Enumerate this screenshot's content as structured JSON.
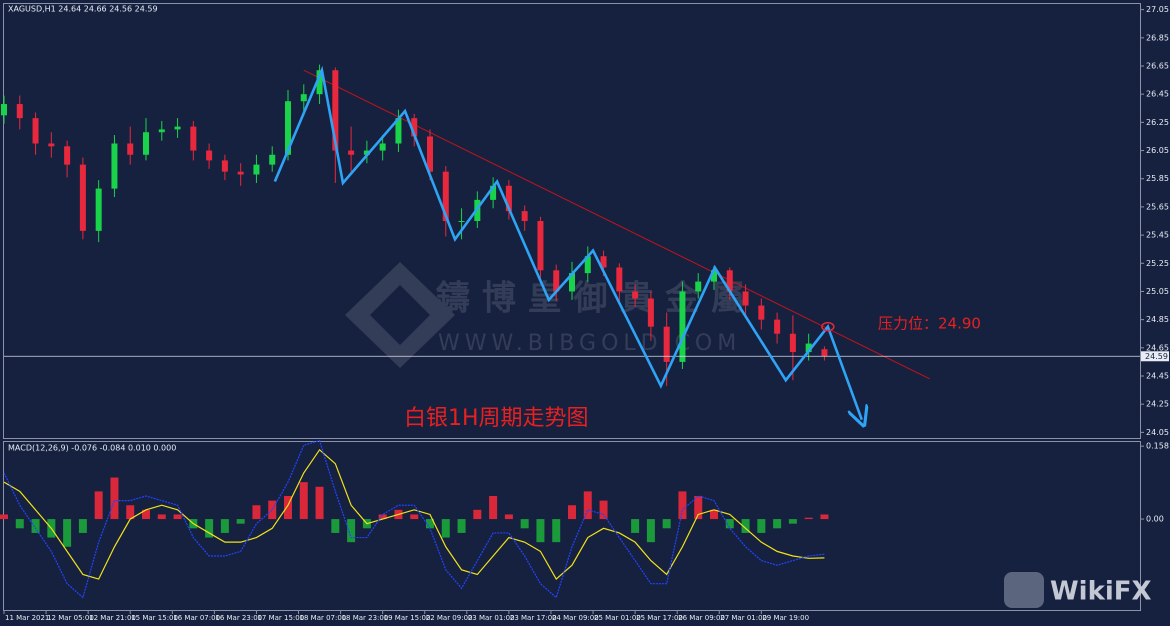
{
  "chart_data": [
    {
      "type": "candlestick",
      "title": "XAGUSD,H1  24.64 24.66 24.56 24.59",
      "x": [
        0,
        6,
        12,
        18,
        24,
        30,
        36,
        42,
        48,
        54,
        60,
        66,
        72,
        78,
        84,
        90,
        96,
        102,
        108,
        114,
        120,
        126,
        132,
        138,
        144,
        150,
        156,
        162,
        168,
        174,
        180,
        186,
        192,
        198,
        204,
        210,
        216,
        222,
        228,
        234,
        240,
        246,
        252,
        258,
        264,
        270,
        276,
        282,
        288,
        294,
        300,
        306,
        312
      ],
      "open": [
        26.3,
        26.38,
        26.28,
        26.1,
        26.08,
        25.95,
        25.48,
        25.78,
        26.1,
        26.02,
        26.18,
        26.2,
        26.22,
        26.05,
        25.98,
        25.9,
        25.88,
        25.95,
        26.02,
        26.4,
        26.45,
        26.62,
        26.05,
        26.02,
        26.05,
        26.1,
        26.28,
        26.15,
        25.9,
        25.55,
        25.55,
        25.7,
        25.8,
        25.62,
        25.55,
        25.2,
        25.05,
        25.18,
        25.3,
        25.22,
        25.05,
        25.0,
        24.8,
        24.55,
        25.05,
        25.12,
        25.2,
        25.05,
        24.95,
        24.85,
        24.75,
        24.62,
        24.64
      ],
      "high": [
        26.44,
        26.44,
        26.32,
        26.18,
        26.12,
        26.0,
        25.84,
        26.16,
        26.22,
        26.28,
        26.26,
        26.28,
        26.26,
        26.1,
        26.02,
        25.96,
        26.02,
        26.08,
        26.48,
        26.52,
        26.66,
        26.64,
        26.22,
        26.12,
        26.16,
        26.34,
        26.31,
        26.2,
        25.94,
        25.64,
        25.76,
        25.86,
        25.84,
        25.66,
        25.58,
        25.24,
        25.26,
        25.37,
        25.34,
        25.25,
        25.1,
        25.05,
        24.9,
        25.12,
        25.18,
        25.23,
        25.22,
        25.1,
        25.0,
        24.9,
        24.88,
        24.75,
        24.66
      ],
      "low": [
        26.24,
        26.2,
        26.02,
        26.0,
        25.86,
        25.42,
        25.4,
        25.72,
        25.95,
        25.98,
        26.12,
        26.14,
        25.98,
        25.92,
        25.84,
        25.8,
        25.82,
        25.9,
        25.98,
        26.3,
        26.38,
        25.82,
        25.9,
        25.96,
        25.98,
        26.04,
        26.08,
        25.84,
        25.44,
        25.42,
        25.5,
        25.64,
        25.56,
        25.48,
        25.12,
        24.98,
        24.99,
        25.12,
        25.16,
        24.98,
        24.94,
        24.7,
        24.38,
        24.5,
        25.0,
        25.06,
        24.99,
        24.88,
        24.78,
        24.68,
        24.42,
        24.56,
        24.56
      ],
      "close": [
        26.38,
        26.28,
        26.1,
        26.08,
        25.95,
        25.48,
        25.78,
        26.1,
        26.02,
        26.18,
        26.2,
        26.22,
        26.05,
        25.98,
        25.9,
        25.88,
        25.95,
        26.02,
        26.4,
        26.45,
        26.62,
        26.05,
        26.02,
        26.05,
        26.1,
        26.28,
        26.15,
        25.9,
        25.55,
        25.55,
        25.7,
        25.8,
        25.62,
        25.55,
        25.2,
        25.05,
        25.18,
        25.3,
        25.22,
        25.05,
        25.0,
        24.8,
        24.55,
        25.05,
        25.12,
        25.2,
        25.05,
        24.95,
        24.85,
        24.75,
        24.62,
        24.68,
        24.59
      ],
      "up_color": "#19d44a",
      "down_color": "#e8283c",
      "xlim": [
        0,
        432
      ],
      "ylim": [
        24.01,
        27.09
      ],
      "yticks": [
        27.05,
        26.85,
        26.65,
        26.45,
        26.25,
        26.05,
        25.85,
        25.65,
        25.45,
        25.25,
        25.05,
        24.85,
        24.65,
        24.45,
        24.25,
        24.05
      ],
      "current_price": 24.59,
      "zigzag": {
        "color": "#2fa3f5",
        "x": [
          103,
          120.9,
          128.9,
          152.5,
          171.5,
          187.5,
          207.2,
          224,
          249.8,
          270.3,
          297.3,
          313.3,
          326.2
        ],
        "values": [
          25.83,
          26.62,
          25.82,
          26.33,
          25.42,
          25.83,
          24.99,
          25.34,
          24.38,
          25.22,
          24.42,
          24.8,
          24.14
        ]
      },
      "trendline": {
        "color": "#c0141c",
        "x": [
          114,
          352
        ],
        "values": [
          26.62,
          24.43
        ]
      },
      "annotations": {
        "title": "白银1H周期走势图",
        "resistance_label": "压力位：24.90",
        "color": "#e82020"
      }
    },
    {
      "type": "macd",
      "title": "MACD(12,26,9) -0.076 -0.084 0.010 0.000",
      "x": [
        0,
        6,
        12,
        18,
        24,
        30,
        36,
        42,
        48,
        54,
        60,
        66,
        72,
        78,
        84,
        90,
        96,
        102,
        108,
        114,
        120,
        126,
        132,
        138,
        144,
        150,
        156,
        162,
        168,
        174,
        180,
        186,
        192,
        198,
        204,
        210,
        216,
        222,
        228,
        234,
        240,
        246,
        252,
        258,
        264,
        270,
        276,
        282,
        288,
        294,
        300,
        306,
        312
      ],
      "histogram": {
        "up_color": "#d8283a",
        "down_color": "#1a9a3a",
        "values": [
          0.01,
          -0.02,
          -0.03,
          -0.04,
          -0.06,
          -0.03,
          0.06,
          0.09,
          0.03,
          0.02,
          0.01,
          0.01,
          -0.02,
          -0.04,
          -0.03,
          -0.01,
          0.03,
          0.04,
          0.05,
          0.08,
          0.07,
          -0.03,
          -0.05,
          -0.02,
          0.01,
          0.02,
          0.01,
          -0.02,
          -0.04,
          -0.03,
          0.02,
          0.05,
          0.01,
          -0.02,
          -0.05,
          -0.05,
          0.03,
          0.06,
          0.04,
          0.0,
          -0.03,
          -0.05,
          -0.02,
          0.06,
          0.05,
          0.02,
          -0.02,
          -0.03,
          -0.03,
          -0.02,
          -0.01,
          0.003,
          0.01
        ]
      },
      "series": [
        {
          "color": "#f2e21a",
          "values": [
            0.08,
            0.06,
            0.02,
            -0.02,
            -0.07,
            -0.12,
            -0.13,
            -0.06,
            0.0,
            0.02,
            0.03,
            0.02,
            -0.01,
            -0.03,
            -0.05,
            -0.05,
            -0.04,
            -0.02,
            0.03,
            0.1,
            0.15,
            0.12,
            0.03,
            -0.01,
            0.0,
            0.01,
            0.02,
            0.01,
            -0.06,
            -0.11,
            -0.12,
            -0.08,
            -0.04,
            -0.05,
            -0.07,
            -0.13,
            -0.1,
            -0.04,
            -0.02,
            -0.03,
            -0.05,
            -0.09,
            -0.12,
            -0.06,
            0.01,
            0.02,
            0.01,
            -0.02,
            -0.05,
            -0.07,
            -0.08,
            -0.085,
            -0.084
          ]
        },
        {
          "color": "#2244ff",
          "values": [
            0.1,
            0.03,
            -0.02,
            -0.07,
            -0.14,
            -0.17,
            -0.05,
            0.04,
            0.04,
            0.05,
            0.04,
            0.03,
            -0.04,
            -0.08,
            -0.08,
            -0.07,
            -0.01,
            0.02,
            0.08,
            0.16,
            0.17,
            0.06,
            -0.04,
            -0.04,
            0.01,
            0.03,
            0.03,
            -0.02,
            -0.11,
            -0.15,
            -0.09,
            -0.03,
            -0.03,
            -0.08,
            -0.14,
            -0.17,
            -0.06,
            0.02,
            0.01,
            -0.04,
            -0.09,
            -0.14,
            -0.14,
            0.02,
            0.05,
            0.04,
            -0.02,
            -0.06,
            -0.09,
            -0.1,
            -0.09,
            -0.08,
            -0.076
          ]
        }
      ],
      "xlim": [
        0,
        432
      ],
      "ylim": [
        -0.197,
        0.167
      ],
      "yticks": [
        0.158,
        {
          "value": 0,
          "label": "0.00"
        }
      ],
      "xticks": [
        {
          "value": 0,
          "label": "11 Mar 2021"
        },
        {
          "value": 16,
          "label": "12 Mar 05:00"
        },
        {
          "value": 32,
          "label": "12 Mar 21:00"
        },
        {
          "value": 48,
          "label": "15 Mar 15:00"
        },
        {
          "value": 64,
          "label": "16 Mar 07:00"
        },
        {
          "value": 80,
          "label": "16 Mar 23:00"
        },
        {
          "value": 96,
          "label": "17 Mar 15:00"
        },
        {
          "value": 112,
          "label": "18 Mar 07:00"
        },
        {
          "value": 128,
          "label": "18 Mar 23:00"
        },
        {
          "value": 144,
          "label": "19 Mar 15:00"
        },
        {
          "value": 160,
          "label": "22 Mar 09:00"
        },
        {
          "value": 176,
          "label": "23 Mar 01:00"
        },
        {
          "value": 192,
          "label": "23 Mar 17:00"
        },
        {
          "value": 208,
          "label": "24 Mar 09:00"
        },
        {
          "value": 224,
          "label": "25 Mar 01:00"
        },
        {
          "value": 240,
          "label": "25 Mar 17:00"
        },
        {
          "value": 256,
          "label": "26 Mar 09:00"
        },
        {
          "value": 272,
          "label": "27 Mar 01:00"
        },
        {
          "value": 288,
          "label": "29 Mar 19:00"
        }
      ]
    }
  ],
  "watermark": {
    "brand": "鑄 博 皇 御 貴 金 屬",
    "url": "WWW.BIBGOLD.COM"
  },
  "badge": "WikiFX"
}
